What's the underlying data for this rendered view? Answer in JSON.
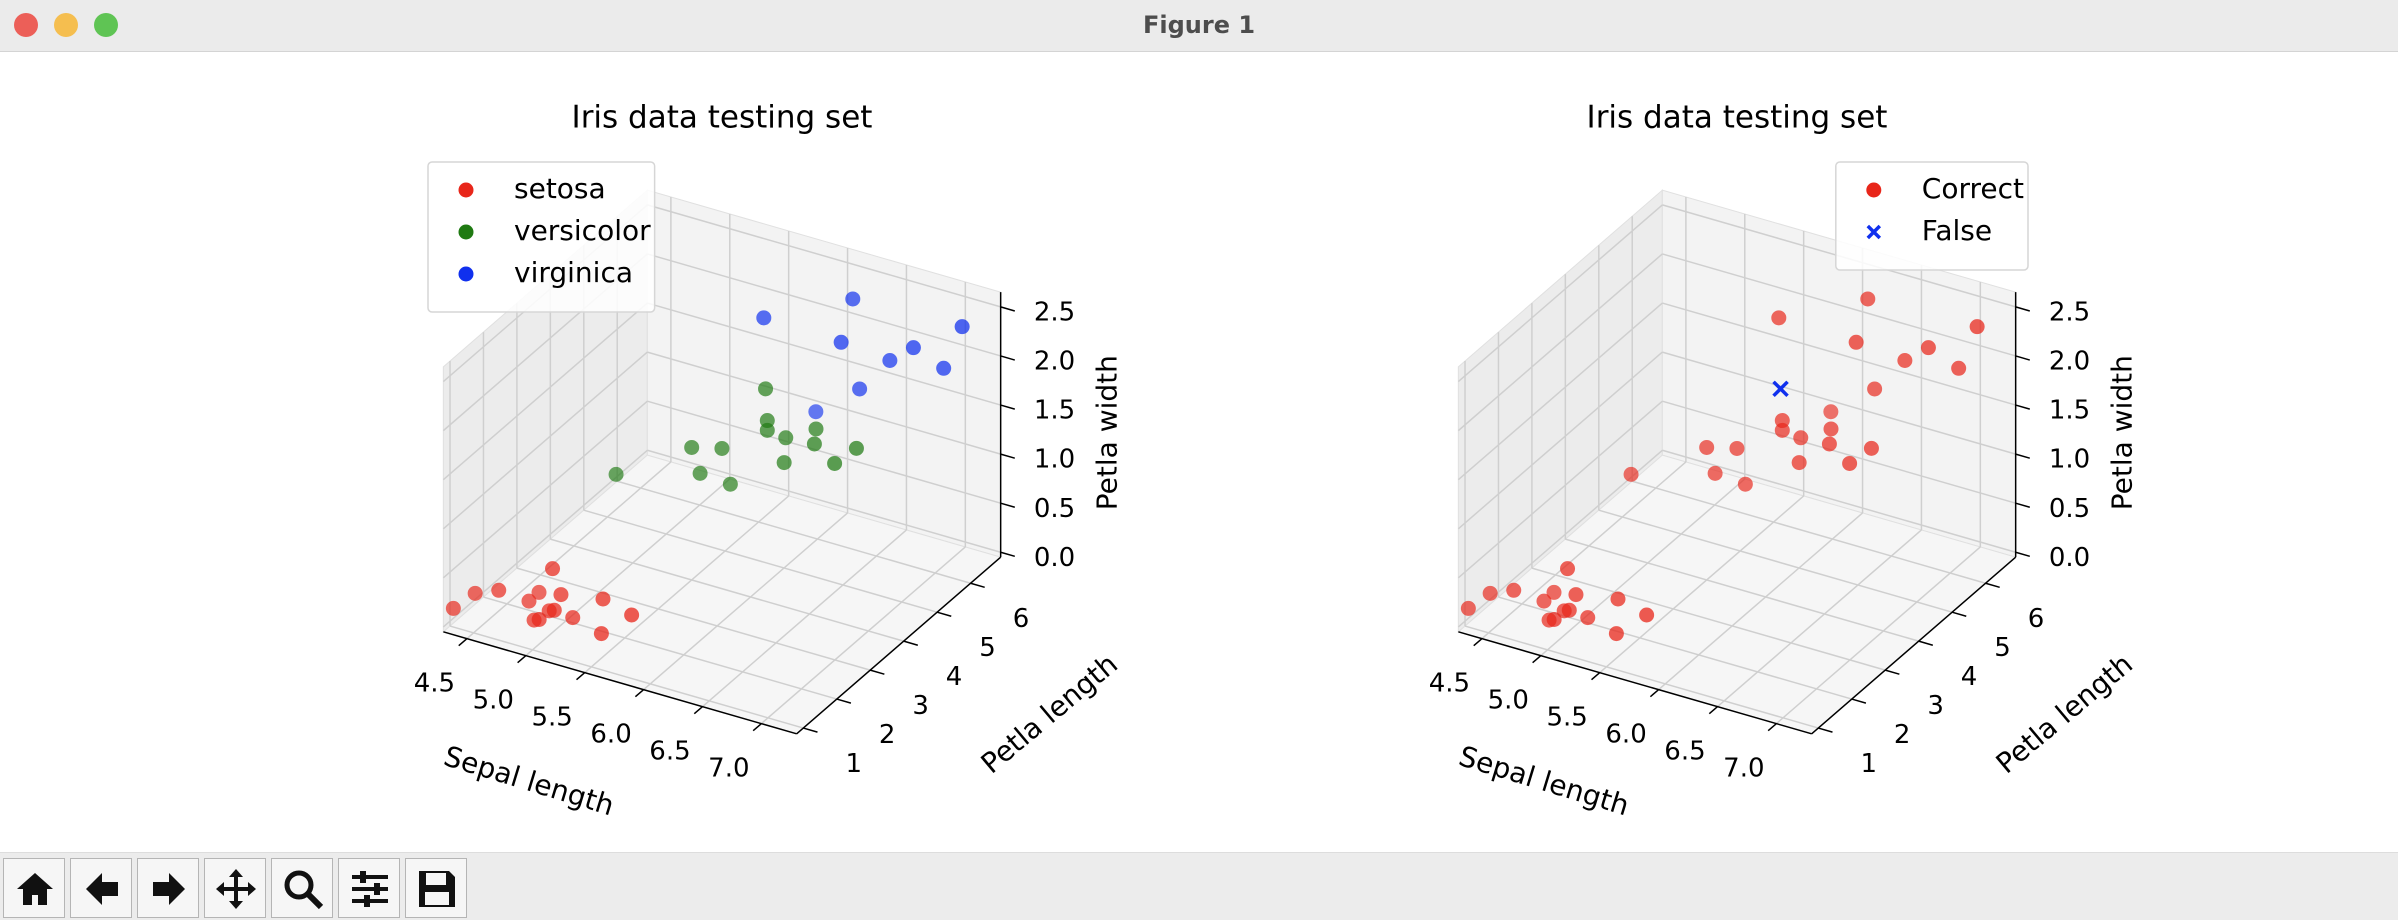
{
  "window_title": "Figure 1",
  "chart_data": [
    {
      "type": "scatter3d",
      "title": "Iris data testing set",
      "xlabel": "Sepal length",
      "ylabel": "Petla length",
      "zlabel": "Petla width",
      "xlim": [
        4.3,
        7.3
      ],
      "ylim": [
        0.8,
        6.9
      ],
      "zlim": [
        -0.05,
        2.65
      ],
      "xticks": [
        4.5,
        {
          "value": 5,
          "label": "5.0"
        },
        5.5,
        {
          "value": 6,
          "label": "6.0"
        },
        6.5,
        {
          "value": 7,
          "label": "7.0"
        }
      ],
      "yticks": [
        1,
        2,
        3,
        4,
        5,
        6
      ],
      "zticks": [
        {
          "value": 0,
          "label": "0.0"
        },
        0.5,
        {
          "value": 1,
          "label": "1.0"
        },
        1.5,
        {
          "value": 2,
          "label": "2.0"
        },
        2.5
      ],
      "grid": true,
      "legend": "upper left",
      "series": [
        {
          "name": "setosa",
          "color": "#e8261a",
          "marker": "o",
          "x": [
            4.4,
            4.6,
            4.8,
            5.0,
            5.1,
            5.4,
            4.9,
            5.0,
            5.2,
            5.7,
            4.8,
            5.1,
            5.5,
            4.3,
            5.0
          ],
          "y": [
            1.4,
            1.4,
            1.6,
            1.5,
            1.5,
            1.7,
            1.4,
            1.2,
            1.5,
            1.5,
            1.9,
            1.3,
            1.3,
            1.1,
            1.6
          ],
          "z": [
            0.2,
            0.3,
            0.2,
            0.2,
            0.4,
            0.4,
            0.1,
            0.2,
            0.2,
            0.4,
            0.2,
            0.3,
            0.2,
            0.1,
            0.6
          ]
        },
        {
          "name": "versicolor",
          "color": "#1f7a12",
          "marker": "o",
          "x": [
            5.5,
            6.0,
            6.4,
            5.7,
            6.1,
            5.9,
            6.6,
            5.6,
            6.3,
            6.7,
            5.0,
            5.8,
            6.2,
            6.0
          ],
          "y": [
            4.0,
            4.5,
            4.5,
            4.2,
            4.7,
            4.8,
            4.4,
            3.9,
            4.9,
            4.7,
            3.5,
            4.1,
            4.3,
            4.5
          ],
          "z": [
            1.3,
            1.5,
            1.5,
            1.3,
            1.4,
            1.8,
            1.4,
            1.1,
            1.5,
            1.5,
            1.0,
            1.0,
            1.3,
            1.6
          ]
        },
        {
          "name": "virginica",
          "color": "#1030ee",
          "marker": "o",
          "x": [
            6.3,
            6.5,
            7.2,
            6.4,
            6.9,
            5.8,
            6.7,
            7.1,
            6.1
          ],
          "y": [
            6.0,
            5.5,
            6.1,
            5.3,
            5.7,
            5.1,
            5.7,
            5.9,
            5.6
          ],
          "z": [
            2.5,
            1.8,
            2.5,
            2.3,
            2.3,
            2.4,
            2.1,
            2.1,
            1.4
          ]
        }
      ]
    },
    {
      "type": "scatter3d",
      "title": "Iris data testing set",
      "xlabel": "Sepal length",
      "ylabel": "Petla length",
      "zlabel": "Petla width",
      "xlim": [
        4.3,
        7.3
      ],
      "ylim": [
        0.8,
        6.9
      ],
      "zlim": [
        -0.05,
        2.65
      ],
      "xticks": [
        4.5,
        {
          "value": 5,
          "label": "5.0"
        },
        5.5,
        {
          "value": 6,
          "label": "6.0"
        },
        6.5,
        {
          "value": 7,
          "label": "7.0"
        }
      ],
      "yticks": [
        1,
        2,
        3,
        4,
        5,
        6
      ],
      "zticks": [
        {
          "value": 0,
          "label": "0.0"
        },
        0.5,
        {
          "value": 1,
          "label": "1.0"
        },
        1.5,
        {
          "value": 2,
          "label": "2.0"
        },
        2.5
      ],
      "grid": true,
      "legend": "upper right",
      "series": [
        {
          "name": "Correct",
          "color": "#e8261a",
          "marker": "o",
          "x": [
            4.4,
            4.6,
            4.8,
            5.0,
            5.1,
            5.4,
            4.9,
            5.0,
            5.2,
            5.7,
            4.8,
            5.1,
            5.5,
            4.3,
            5.0,
            5.5,
            6.0,
            6.4,
            5.7,
            6.1,
            6.6,
            5.6,
            6.3,
            6.7,
            5.0,
            5.8,
            6.2,
            6.0,
            6.3,
            6.5,
            7.2,
            6.4,
            6.9,
            5.8,
            6.7,
            7.1,
            6.1
          ],
          "y": [
            1.4,
            1.4,
            1.6,
            1.5,
            1.5,
            1.7,
            1.4,
            1.2,
            1.5,
            1.5,
            1.9,
            1.3,
            1.3,
            1.1,
            1.6,
            4.0,
            4.5,
            4.5,
            4.2,
            4.7,
            4.4,
            3.9,
            4.9,
            4.7,
            3.5,
            4.1,
            4.3,
            4.5,
            6.0,
            5.5,
            6.1,
            5.3,
            5.7,
            5.1,
            5.7,
            5.9,
            5.6
          ],
          "z": [
            0.2,
            0.3,
            0.2,
            0.2,
            0.4,
            0.4,
            0.1,
            0.2,
            0.2,
            0.4,
            0.2,
            0.3,
            0.2,
            0.1,
            0.6,
            1.3,
            1.5,
            1.5,
            1.3,
            1.4,
            1.4,
            1.1,
            1.5,
            1.5,
            1.0,
            1.0,
            1.3,
            1.6,
            2.5,
            1.8,
            2.5,
            2.3,
            2.3,
            2.4,
            2.1,
            2.1,
            1.4
          ]
        },
        {
          "name": "False",
          "color": "#1030ee",
          "marker": "x",
          "x": [
            5.9
          ],
          "y": [
            4.8
          ],
          "z": [
            1.8
          ]
        }
      ]
    }
  ]
}
